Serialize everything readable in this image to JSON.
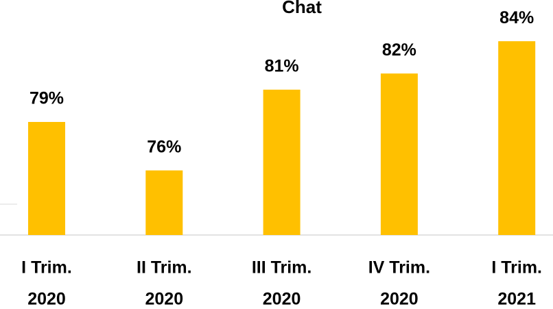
{
  "chart_data": {
    "type": "bar",
    "title": "Chat",
    "categories": [
      [
        "I Trim.",
        "2020"
      ],
      [
        "II Trim.",
        "2020"
      ],
      [
        "III Trim.",
        "2020"
      ],
      [
        "IV Trim.",
        "2020"
      ],
      [
        "I Trim.",
        "2021"
      ]
    ],
    "values": [
      79,
      76,
      81,
      82,
      84
    ],
    "value_labels": [
      "79%",
      "76%",
      "81%",
      "82%",
      "84%"
    ],
    "color": "#ffc000",
    "ylim": [
      72,
      86
    ]
  }
}
